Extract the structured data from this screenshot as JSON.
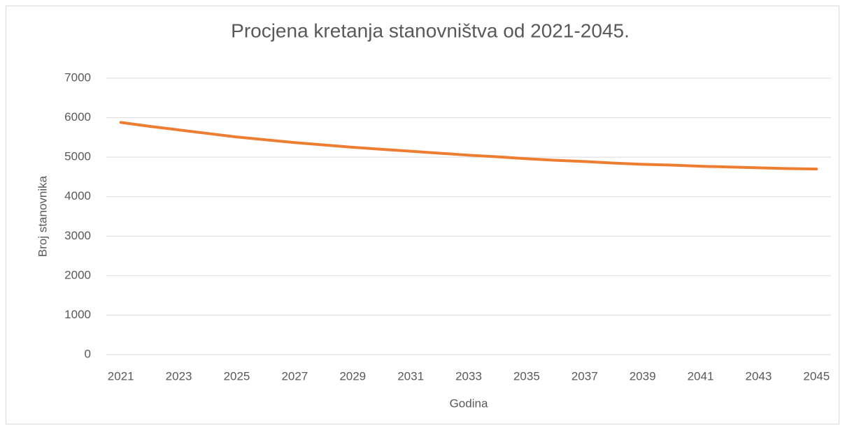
{
  "chart_data": {
    "type": "line",
    "title": "Procjena kretanja stanovništva od 2021-2045.",
    "x_label": "Godina",
    "y_label": "Broj stanovnika",
    "x": [
      2021,
      2022,
      2023,
      2024,
      2025,
      2026,
      2027,
      2028,
      2029,
      2030,
      2031,
      2032,
      2033,
      2034,
      2035,
      2036,
      2037,
      2038,
      2039,
      2040,
      2041,
      2042,
      2043,
      2044,
      2045
    ],
    "values": [
      5880,
      5780,
      5690,
      5600,
      5510,
      5440,
      5370,
      5310,
      5250,
      5200,
      5150,
      5100,
      5050,
      5010,
      4960,
      4920,
      4890,
      4850,
      4820,
      4800,
      4770,
      4750,
      4730,
      4710,
      4700
    ],
    "color": "#ed7d31",
    "xlim": [
      2020.5,
      2045.5
    ],
    "xticks": [
      2021,
      2023,
      2025,
      2027,
      2029,
      2031,
      2033,
      2035,
      2037,
      2039,
      2041,
      2043,
      2045
    ],
    "ylim": [
      0,
      7000
    ],
    "yticks": [
      0,
      1000,
      2000,
      3000,
      4000,
      5000,
      6000,
      7000
    ],
    "grid": true
  }
}
